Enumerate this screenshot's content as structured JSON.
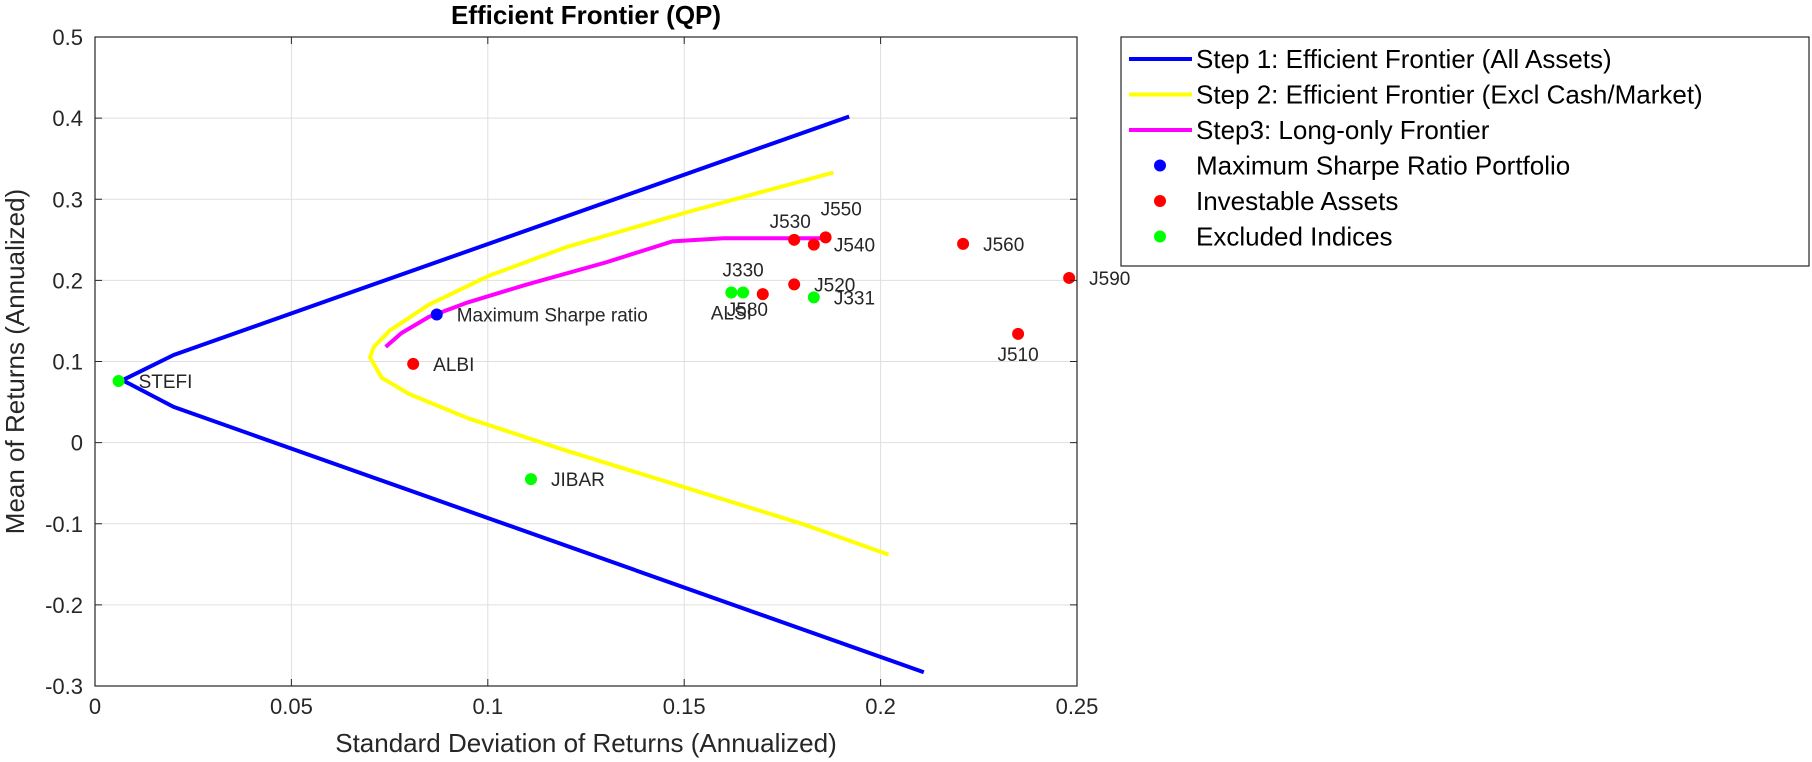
{
  "chart_data": {
    "type": "line",
    "title": "Efficient Frontier (QP)",
    "xlabel": "Standard Deviation of Returns (Annualized)",
    "ylabel": "Mean of Returns (Annualized)",
    "xlim": [
      0,
      0.25
    ],
    "ylim": [
      -0.3,
      0.5
    ],
    "x_ticks": [
      0,
      0.05,
      0.1,
      0.15,
      0.2,
      0.25
    ],
    "x_tick_labels": [
      "0",
      "0.05",
      "0.1",
      "0.15",
      "0.2",
      "0.25"
    ],
    "y_ticks": [
      -0.3,
      -0.2,
      -0.1,
      0,
      0.1,
      0.2,
      0.3,
      0.4,
      0.5
    ],
    "y_tick_labels": [
      "-0.3",
      "-0.2",
      "-0.1",
      "0",
      "0.1",
      "0.2",
      "0.3",
      "0.4",
      "0.5"
    ],
    "grid": true,
    "legend_position": "outside-top-right",
    "series": [
      {
        "name": "Step 1: Efficient Frontier (All Assets)",
        "kind": "line",
        "color": "#0000ff",
        "points": [
          [
            0.192,
            0.402
          ],
          [
            0.02,
            0.108
          ],
          [
            0.007,
            0.077
          ],
          [
            0.02,
            0.044
          ],
          [
            0.211,
            -0.283
          ]
        ]
      },
      {
        "name": "Step 2: Efficient Frontier (Excl Cash/Market)",
        "kind": "line",
        "color": "#ffff00",
        "points": [
          [
            0.188,
            0.333
          ],
          [
            0.15,
            0.283
          ],
          [
            0.12,
            0.241
          ],
          [
            0.1,
            0.205
          ],
          [
            0.085,
            0.17
          ],
          [
            0.075,
            0.138
          ],
          [
            0.071,
            0.118
          ],
          [
            0.07,
            0.105
          ],
          [
            0.073,
            0.08
          ],
          [
            0.08,
            0.06
          ],
          [
            0.095,
            0.03
          ],
          [
            0.12,
            -0.01
          ],
          [
            0.15,
            -0.055
          ],
          [
            0.18,
            -0.1
          ],
          [
            0.202,
            -0.138
          ]
        ]
      },
      {
        "name": "Step3: Long-only Frontier",
        "kind": "line",
        "color": "#ff00ff",
        "points": [
          [
            0.074,
            0.118
          ],
          [
            0.078,
            0.135
          ],
          [
            0.085,
            0.155
          ],
          [
            0.095,
            0.173
          ],
          [
            0.11,
            0.195
          ],
          [
            0.13,
            0.222
          ],
          [
            0.147,
            0.248
          ],
          [
            0.16,
            0.252
          ],
          [
            0.187,
            0.252
          ]
        ]
      },
      {
        "name": "Maximum Sharpe Ratio Portfolio",
        "kind": "scatter",
        "color": "#0000ff",
        "points": [
          {
            "x": 0.087,
            "y": 0.158,
            "label": "Maximum Sharpe ratio",
            "pos": "right"
          }
        ]
      },
      {
        "name": "Investable Assets",
        "kind": "scatter",
        "color": "#ff0000",
        "points": [
          {
            "x": 0.081,
            "y": 0.097,
            "label": "ALBI",
            "pos": "right"
          },
          {
            "x": 0.178,
            "y": 0.25,
            "label": "J530",
            "pos": "above-left"
          },
          {
            "x": 0.186,
            "y": 0.253,
            "label": "J550",
            "pos": "above-right"
          },
          {
            "x": 0.183,
            "y": 0.244,
            "label": "J540",
            "pos": "right"
          },
          {
            "x": 0.221,
            "y": 0.245,
            "label": "J560",
            "pos": "right"
          },
          {
            "x": 0.248,
            "y": 0.203,
            "label": "J590",
            "pos": "right"
          },
          {
            "x": 0.178,
            "y": 0.195,
            "label": "J520",
            "pos": "right"
          },
          {
            "x": 0.17,
            "y": 0.183,
            "label": "J580",
            "pos": "below-right"
          },
          {
            "x": 0.235,
            "y": 0.134,
            "label": "J510",
            "pos": "below"
          }
        ]
      },
      {
        "name": "Excluded Indices",
        "kind": "scatter",
        "color": "#00ff00",
        "points": [
          {
            "x": 0.006,
            "y": 0.076,
            "label": "STEFI",
            "pos": "right"
          },
          {
            "x": 0.162,
            "y": 0.185,
            "label": "ALSI",
            "pos": "below"
          },
          {
            "x": 0.165,
            "y": 0.185,
            "label": "J330",
            "pos": "above"
          },
          {
            "x": 0.183,
            "y": 0.179,
            "label": "J331",
            "pos": "right"
          },
          {
            "x": 0.111,
            "y": -0.045,
            "label": "JIBAR",
            "pos": "right"
          }
        ]
      }
    ]
  }
}
